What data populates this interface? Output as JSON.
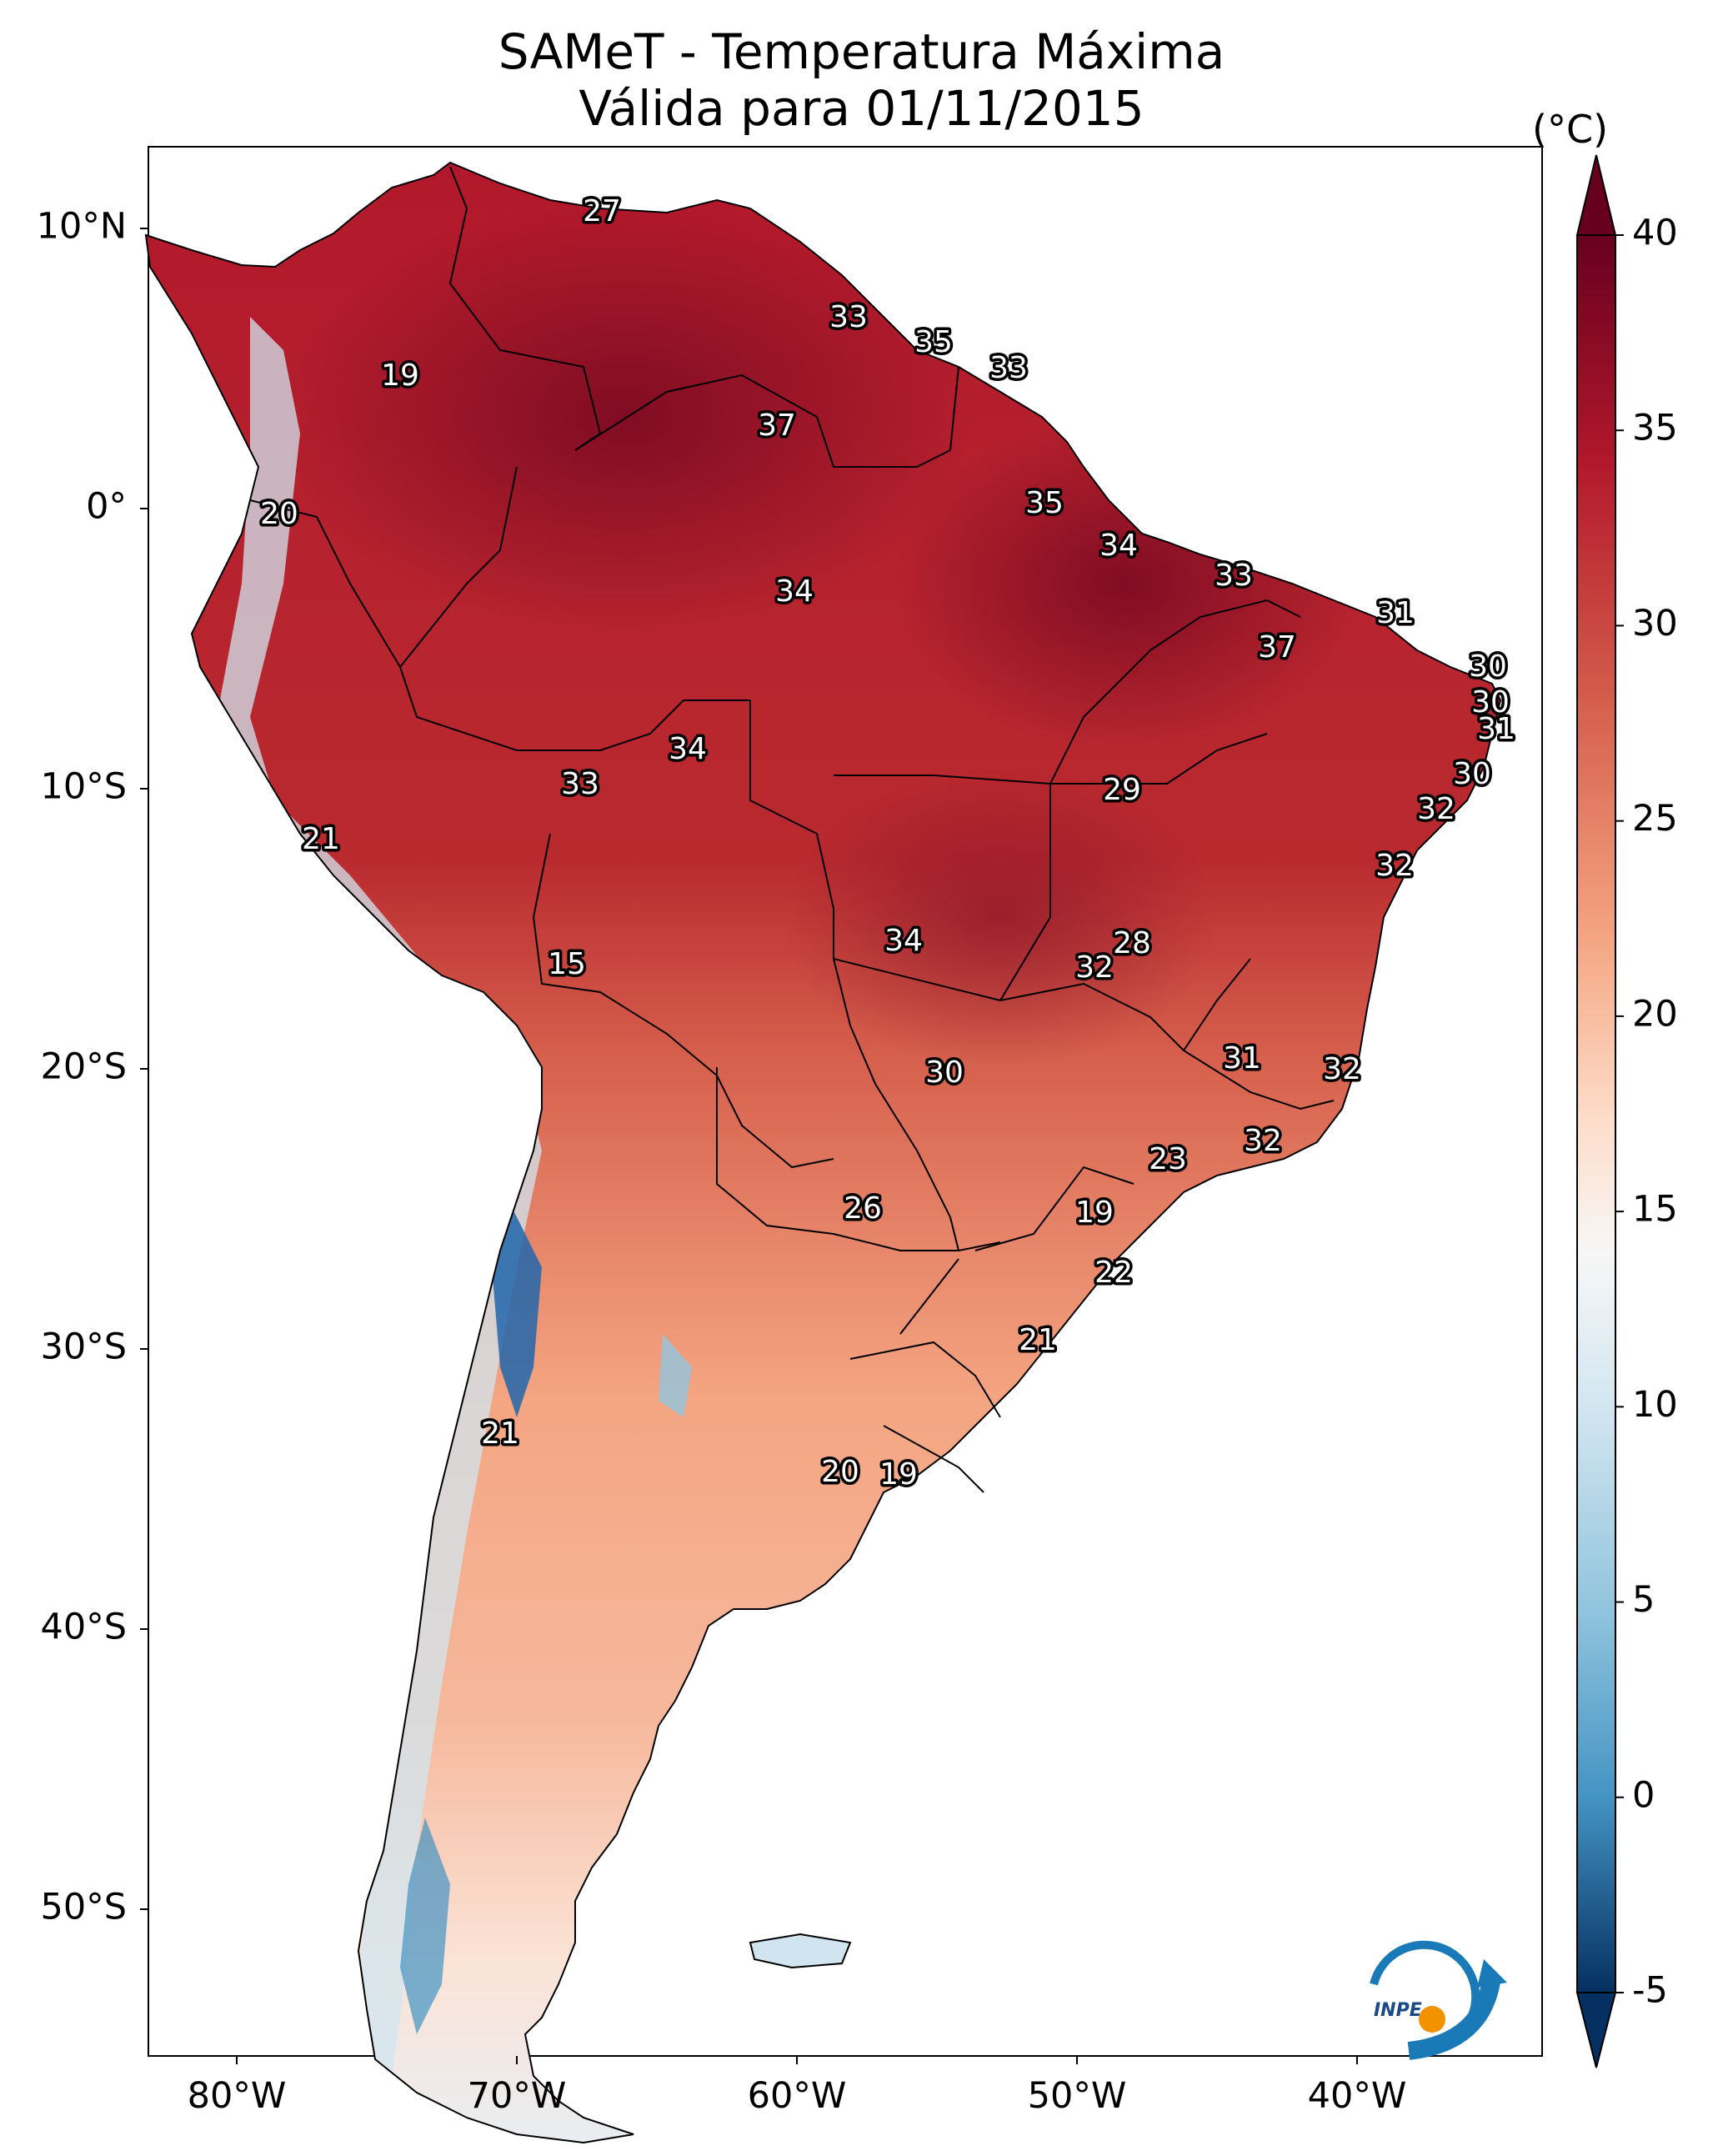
{
  "title": "SAMeT - Temperatura Máxima",
  "subtitle": "Válida para 01/11/2015",
  "colorbar": {
    "unit": "(°C)",
    "ticks": [
      "40",
      "35",
      "30",
      "25",
      "20",
      "15",
      "10",
      "5",
      "0",
      "-5"
    ],
    "min": -5,
    "max": 40
  },
  "axes": {
    "lat_ticks": [
      "10°N",
      "0°",
      "10°S",
      "20°S",
      "30°S",
      "40°S",
      "50°S"
    ],
    "lon_ticks": [
      "80°W",
      "70°W",
      "60°W",
      "50°W",
      "40°W"
    ]
  },
  "station_labels": [
    {
      "value": "27"
    },
    {
      "value": "33"
    },
    {
      "value": "35"
    },
    {
      "value": "33"
    },
    {
      "value": "19"
    },
    {
      "value": "37"
    },
    {
      "value": "20"
    },
    {
      "value": "35"
    },
    {
      "value": "34"
    },
    {
      "value": "34"
    },
    {
      "value": "33"
    },
    {
      "value": "31"
    },
    {
      "value": "37"
    },
    {
      "value": "30"
    },
    {
      "value": "30"
    },
    {
      "value": "31"
    },
    {
      "value": "34"
    },
    {
      "value": "33"
    },
    {
      "value": "30"
    },
    {
      "value": "29"
    },
    {
      "value": "32"
    },
    {
      "value": "21"
    },
    {
      "value": "32"
    },
    {
      "value": "15"
    },
    {
      "value": "34"
    },
    {
      "value": "28"
    },
    {
      "value": "32"
    },
    {
      "value": "30"
    },
    {
      "value": "31"
    },
    {
      "value": "32"
    },
    {
      "value": "32"
    },
    {
      "value": "23"
    },
    {
      "value": "26"
    },
    {
      "value": "19"
    },
    {
      "value": "22"
    },
    {
      "value": "21"
    },
    {
      "value": "21"
    },
    {
      "value": "20"
    },
    {
      "value": "19"
    }
  ],
  "logo": {
    "text": "INPE"
  },
  "colors": {
    "hot": "#67001f",
    "warm": "#d6604d",
    "neutral": "#f7f7f7",
    "cool": "#4393c3",
    "cold": "#053061"
  }
}
